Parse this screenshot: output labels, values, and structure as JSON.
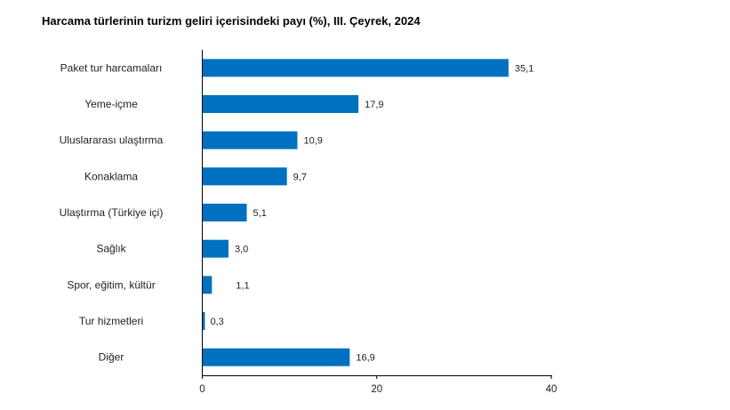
{
  "chart_data": {
    "type": "bar",
    "orientation": "horizontal",
    "title": "Harcama türlerinin turizm geliri içerisindeki payı (%), III. Çeyrek, 2024",
    "categories": [
      "Paket tur harcamaları",
      "Yeme-içme",
      "Uluslararası ulaştırma",
      "Konaklama",
      "Ulaştırma (Türkiye içi)",
      "Sağlık",
      "Spor, eğitim, kültür",
      "Tur hizmetleri",
      "Diğer"
    ],
    "values": [
      35.1,
      17.9,
      10.9,
      9.7,
      5.1,
      3.0,
      1.1,
      0.3,
      16.9
    ],
    "value_labels": [
      "35,1",
      "17,9",
      "10,9",
      "9,7",
      "5,1",
      "3,0",
      "1,1",
      "0,3",
      "16,9"
    ],
    "xlim": [
      0,
      40
    ],
    "xticks": [
      0,
      20,
      40
    ],
    "xtick_labels": [
      "0",
      "20",
      "40"
    ],
    "xlabel": "",
    "ylabel": "",
    "grid": false,
    "bar_color": "#0070C0"
  }
}
